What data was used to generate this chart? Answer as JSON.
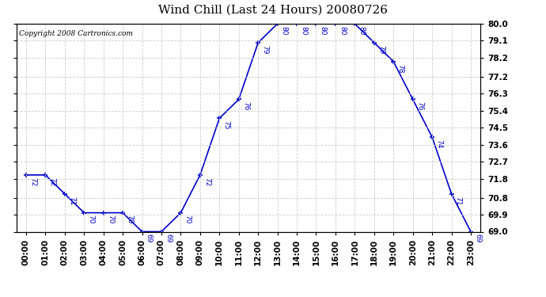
{
  "title": "Wind Chill (Last 24 Hours) 20080726",
  "copyright": "Copyright 2008 Cartronics.com",
  "line_color": "#0000cc",
  "marker_color": "#0000cc",
  "background_color": "#ffffff",
  "grid_color": "#cccccc",
  "times": [
    "00:00",
    "01:00",
    "02:00",
    "03:00",
    "04:00",
    "05:00",
    "06:00",
    "07:00",
    "08:00",
    "09:00",
    "10:00",
    "11:00",
    "12:00",
    "13:00",
    "14:00",
    "15:00",
    "16:00",
    "17:00",
    "18:00",
    "19:00",
    "20:00",
    "21:00",
    "22:00",
    "23:00"
  ],
  "values": [
    72,
    72,
    71,
    70,
    70,
    70,
    69,
    69,
    70,
    72,
    75,
    76,
    79,
    80,
    80,
    80,
    80,
    80,
    79,
    78,
    76,
    74,
    71,
    69
  ],
  "ylim_min": 69.0,
  "ylim_max": 80.0,
  "yticks": [
    69.0,
    69.9,
    70.8,
    71.8,
    72.7,
    73.6,
    74.5,
    75.4,
    76.3,
    77.2,
    78.2,
    79.1,
    80.0
  ],
  "title_fontsize": 11,
  "copyright_fontsize": 6.5,
  "label_fontsize": 6.5,
  "tick_fontsize": 7.5
}
